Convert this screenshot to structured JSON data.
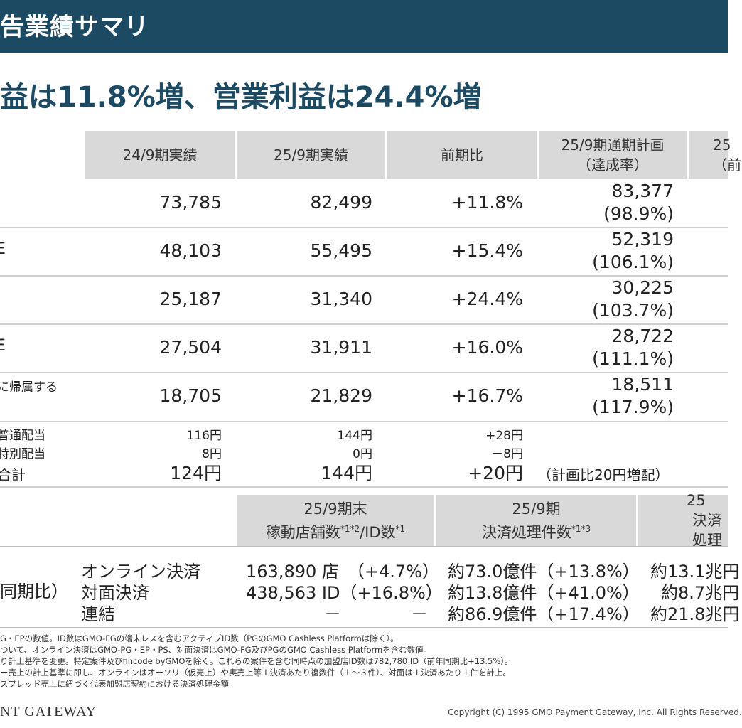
{
  "header": {
    "title": "告業績サマリ"
  },
  "headline": "益は11.8%増、営業利益は24.4%増",
  "table1": {
    "columns": [
      {
        "line1": "24/9期実績",
        "line2": ""
      },
      {
        "line1": "25/9期実績",
        "line2": ""
      },
      {
        "line1": "前期比",
        "line2": ""
      },
      {
        "line1": "25/9期通期計画",
        "line2": "（達成率）"
      },
      {
        "line1": "25",
        "line2": "（前"
      }
    ],
    "rows": [
      {
        "label": "",
        "v1": "73,785",
        "v2": "82,499",
        "v3": "+11.8%",
        "plan": "83,377",
        "rate": "(98.9%)"
      },
      {
        "label": "E",
        "v1": "48,103",
        "v2": "55,495",
        "v3": "+15.4%",
        "plan": "52,319",
        "rate": "(106.1%)"
      },
      {
        "label": "",
        "v1": "25,187",
        "v2": "31,340",
        "v3": "+24.4%",
        "plan": "30,225",
        "rate": "(103.7%)"
      },
      {
        "label": "E",
        "v1": "27,504",
        "v2": "31,911",
        "v3": "+16.0%",
        "plan": "28,722",
        "rate": "(111.1%)"
      },
      {
        "label": "に帰属する",
        "v1": "18,705",
        "v2": "21,829",
        "v3": "+16.7%",
        "plan": "18,511",
        "rate": "(117.9%)"
      }
    ],
    "dividend": {
      "labels": [
        "普通配当",
        "特別配当",
        "合計"
      ],
      "v1": [
        "116円",
        "8円",
        "124円"
      ],
      "v2": [
        "144円",
        "0円",
        "144円"
      ],
      "v3": [
        "+28円",
        "－8円",
        "+20円"
      ],
      "note": "（計画比20円増配）"
    }
  },
  "table2": {
    "col1": {
      "line1": "25/9期末",
      "line2": "稼動店舗数",
      "sup1": "*1*2",
      "line2b": "/ID数",
      "sup2": "*1"
    },
    "col2": {
      "line1": "25/9期",
      "line2": "決済処理件数",
      "sup": "*1*3"
    },
    "col3": {
      "line1": "25",
      "line2": "決済処理"
    },
    "left_label": "同期比）",
    "row_labels": [
      "オンライン決済",
      "対面決済",
      "連結"
    ],
    "stores": [
      "163,890 店　（+4.7%）",
      "438,563 ID（+16.8%）"
    ],
    "dash": "－",
    "counts": [
      "約73.0億件（+13.8%）",
      "約13.8億件（+41.0%）",
      "約86.9億件（+17.4%）"
    ],
    "amounts": [
      "約13.1兆円",
      "約8.7兆円",
      "約21.8兆円"
    ]
  },
  "footnotes": [
    "G・EPの数値。ID数はGMO-FGの端末レスを含むアクティブID数（PGのGMO Cashless Platformは除く）。",
    "ついて、オンライン決済はGMO-PG・EP・PS、対面決済はGMO-FG及びPGのGMO Cashless Platformを含む数値。",
    "り計上基準を変更。特定案件及びfincode byGMOを除く。これらの案件を含む同時点の加盟店ID数は782,780 ID（前年同期比+13.5%）。",
    "ー売上の計上基準に即し、オンラインはオーソリ（仮売上）や実売上等１決済あたり複数件（１～３件）、対面は１決済あたり１件を計上。",
    "スプレッド売上に紐づく代表加盟店契約における決済処理金額"
  ],
  "footer": {
    "logo": "NT GATEWAY",
    "copyright": "Copyright (C) 1995 GMO Payment Gateway, Inc. All Rights Reserved."
  }
}
